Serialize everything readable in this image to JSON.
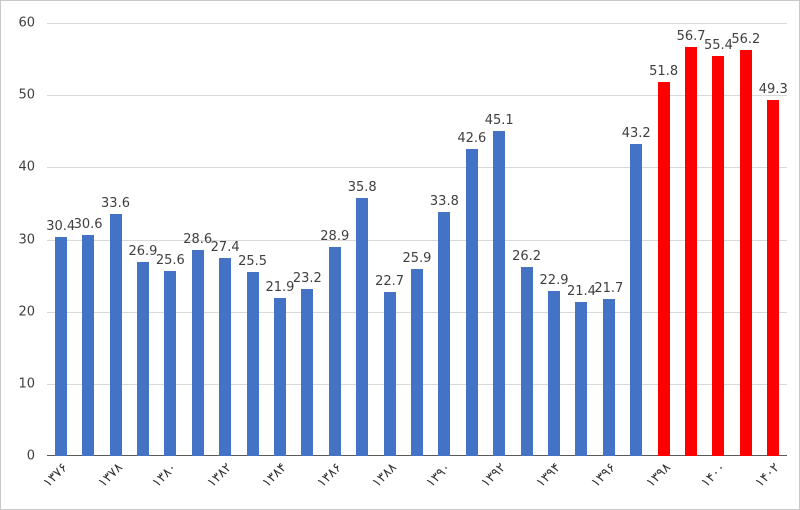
{
  "chart_data": {
    "type": "bar",
    "title": "",
    "xlabel": "",
    "ylabel": "",
    "ylim": [
      0,
      60
    ],
    "y_ticks": [
      0,
      10,
      20,
      30,
      40,
      50,
      60
    ],
    "grid": true,
    "legend": false,
    "values": [
      30.4,
      30.6,
      33.6,
      26.9,
      25.6,
      28.6,
      27.4,
      25.5,
      21.9,
      23.2,
      28.9,
      35.8,
      22.7,
      25.9,
      33.8,
      42.6,
      45.1,
      26.2,
      22.9,
      21.4,
      21.7,
      43.2,
      51.8,
      56.7,
      55.4,
      56.2,
      49.3
    ],
    "data_labels": [
      "30.4",
      "30.6",
      "33.6",
      "26.9",
      "25.6",
      "28.6",
      "27.4",
      "25.5",
      "21.9",
      "23.2",
      "28.9",
      "35.8",
      "22.7",
      "25.9",
      "33.8",
      "42.6",
      "45.1",
      "26.2",
      "22.9",
      "21.4",
      "21.7",
      "43.2",
      "51.8",
      "56.7",
      "55.4",
      "56.2",
      "49.3"
    ],
    "bar_colors": [
      "#4472C4",
      "#4472C4",
      "#4472C4",
      "#4472C4",
      "#4472C4",
      "#4472C4",
      "#4472C4",
      "#4472C4",
      "#4472C4",
      "#4472C4",
      "#4472C4",
      "#4472C4",
      "#4472C4",
      "#4472C4",
      "#4472C4",
      "#4472C4",
      "#4472C4",
      "#4472C4",
      "#4472C4",
      "#4472C4",
      "#4472C4",
      "#4472C4",
      "#FF0000",
      "#FF0000",
      "#FF0000",
      "#FF0000",
      "#FF0000"
    ],
    "x_ticks": [
      {
        "index": 0,
        "label": "۱۳۷۶"
      },
      {
        "index": 2,
        "label": "۱۳۷۸"
      },
      {
        "index": 4,
        "label": "۱۳۸۰"
      },
      {
        "index": 6,
        "label": "۱۳۸۲"
      },
      {
        "index": 8,
        "label": "۱۳۸۴"
      },
      {
        "index": 10,
        "label": "۱۳۸۶"
      },
      {
        "index": 12,
        "label": "۱۳۸۸"
      },
      {
        "index": 14,
        "label": "۱۳۹۰"
      },
      {
        "index": 16,
        "label": "۱۳۹۲"
      },
      {
        "index": 18,
        "label": "۱۳۹۴"
      },
      {
        "index": 20,
        "label": "۱۳۹۶"
      },
      {
        "index": 22,
        "label": "۱۳۹۸"
      },
      {
        "index": 24,
        "label": "۱۴۰۰"
      },
      {
        "index": 26,
        "label": "۱۴۰۲"
      }
    ],
    "colors": {
      "primary_bar": "#4472C4",
      "highlight_bar": "#FF0000",
      "gridline": "#D9D9D9",
      "axis_line": "#595959",
      "label_text": "#404040"
    }
  }
}
